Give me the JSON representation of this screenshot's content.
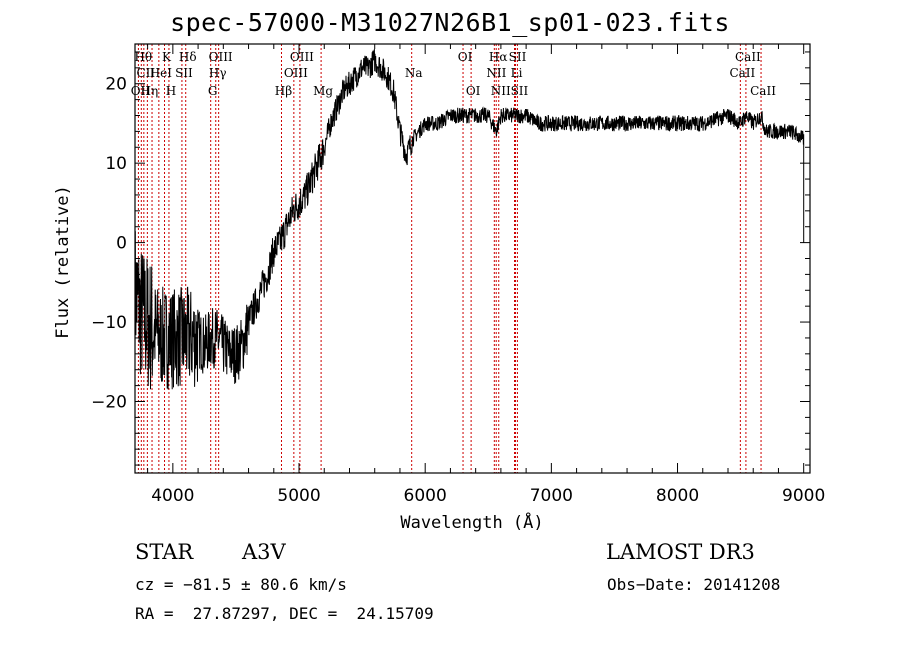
{
  "chart_data": {
    "type": "line",
    "title": "spec-57000-M31027N26B1_sp01-023.fits",
    "xlabel": "Wavelength (Å)",
    "ylabel": "Flux (relative)",
    "xlim": [
      3700,
      9050
    ],
    "ylim": [
      -29,
      25
    ],
    "xticks": [
      4000,
      5000,
      6000,
      7000,
      8000,
      9000
    ],
    "xtick_labels": [
      "4000",
      "5000",
      "6000",
      "7000",
      "8000",
      "9000"
    ],
    "yticks": [
      -20,
      -10,
      0,
      10,
      20
    ],
    "ytick_labels": [
      "−20",
      "−10",
      "0",
      "10",
      "20"
    ],
    "grid": false,
    "series": [
      {
        "name": "spectrum",
        "x": [
          3700,
          3750,
          3800,
          3850,
          3900,
          3950,
          4000,
          4050,
          4100,
          4150,
          4200,
          4250,
          4300,
          4350,
          4400,
          4450,
          4500,
          4550,
          4600,
          4650,
          4700,
          4750,
          4800,
          4850,
          4900,
          4950,
          5000,
          5050,
          5100,
          5150,
          5200,
          5250,
          5300,
          5350,
          5400,
          5450,
          5500,
          5550,
          5600,
          5650,
          5700,
          5750,
          5800,
          5850,
          5900,
          5950,
          6000,
          6100,
          6200,
          6300,
          6400,
          6500,
          6563,
          6600,
          6700,
          6800,
          6900,
          7000,
          7200,
          7400,
          7600,
          7800,
          8000,
          8200,
          8400,
          8498,
          8542,
          8600,
          8662,
          8700,
          8800,
          8900,
          9000
        ],
        "y": [
          -6,
          -9,
          -10,
          -11,
          -12,
          -12,
          -12,
          -12,
          -12,
          -12,
          -12,
          -13,
          -12,
          -12,
          -13,
          -14,
          -14,
          -13,
          -10,
          -8,
          -6,
          -4,
          -1,
          0,
          2,
          4,
          5,
          6,
          8,
          10,
          12,
          15,
          17,
          19,
          20,
          21,
          22,
          22,
          23,
          22,
          21,
          19,
          14,
          11,
          13,
          14,
          15,
          15,
          16,
          16,
          16,
          16,
          14,
          16,
          16,
          16,
          15,
          15,
          15,
          15,
          15,
          15,
          15,
          15,
          16,
          15,
          16,
          15,
          16,
          14,
          14,
          14,
          13
        ]
      }
    ],
    "lines": [
      {
        "wave": 3727,
        "label": "OII",
        "row": 3
      },
      {
        "wave": 3750,
        "label": "Hθ",
        "row": 1
      },
      {
        "wave": 3770,
        "label": "CII",
        "row": 2
      },
      {
        "wave": 3798,
        "label": "Hη",
        "row": 3
      },
      {
        "wave": 3835,
        "label": "",
        "row": 0
      },
      {
        "wave": 3889,
        "label": "HeI",
        "row": 2
      },
      {
        "wave": 3934,
        "label": "K",
        "row": 1
      },
      {
        "wave": 3969,
        "label": "H",
        "row": 3
      },
      {
        "wave": 4072,
        "label": "SII",
        "row": 2
      },
      {
        "wave": 4102,
        "label": "Hδ",
        "row": 1
      },
      {
        "wave": 4300,
        "label": "G",
        "row": 3
      },
      {
        "wave": 4340,
        "label": "Hγ",
        "row": 2
      },
      {
        "wave": 4363,
        "label": "OIII",
        "row": 1
      },
      {
        "wave": 4861,
        "label": "Hβ",
        "row": 3
      },
      {
        "wave": 4959,
        "label": "OIII",
        "row": 2
      },
      {
        "wave": 5007,
        "label": "OIII",
        "row": 1
      },
      {
        "wave": 5175,
        "label": "Mg",
        "row": 3
      },
      {
        "wave": 5893,
        "label": "Na",
        "row": 2
      },
      {
        "wave": 6300,
        "label": "OI",
        "row": 1
      },
      {
        "wave": 6364,
        "label": "OI",
        "row": 3
      },
      {
        "wave": 6548,
        "label": "NII",
        "row": 2
      },
      {
        "wave": 6563,
        "label": "Hα",
        "row": 1
      },
      {
        "wave": 6583,
        "label": "NII",
        "row": 3
      },
      {
        "wave": 6708,
        "label": "Li",
        "row": 2
      },
      {
        "wave": 6716,
        "label": "SII",
        "row": 1
      },
      {
        "wave": 6731,
        "label": "SII",
        "row": 3
      },
      {
        "wave": 8498,
        "label": "CaII",
        "row": 2
      },
      {
        "wave": 8542,
        "label": "CaII",
        "row": 1
      },
      {
        "wave": 8662,
        "label": "CaII",
        "row": 3
      }
    ]
  },
  "info": {
    "class_label": "STAR",
    "subclass": "A3V",
    "survey": "LAMOST DR3",
    "redshift": "cz = −81.5 ± 80.6 km/s",
    "obs_date": "Obs−Date: 20141208",
    "coords": "RA =  27.87297, DEC =  24.15709"
  },
  "colors": {
    "line_marker": "#cc0000",
    "axis": "#000000",
    "spectrum": "#000000"
  }
}
